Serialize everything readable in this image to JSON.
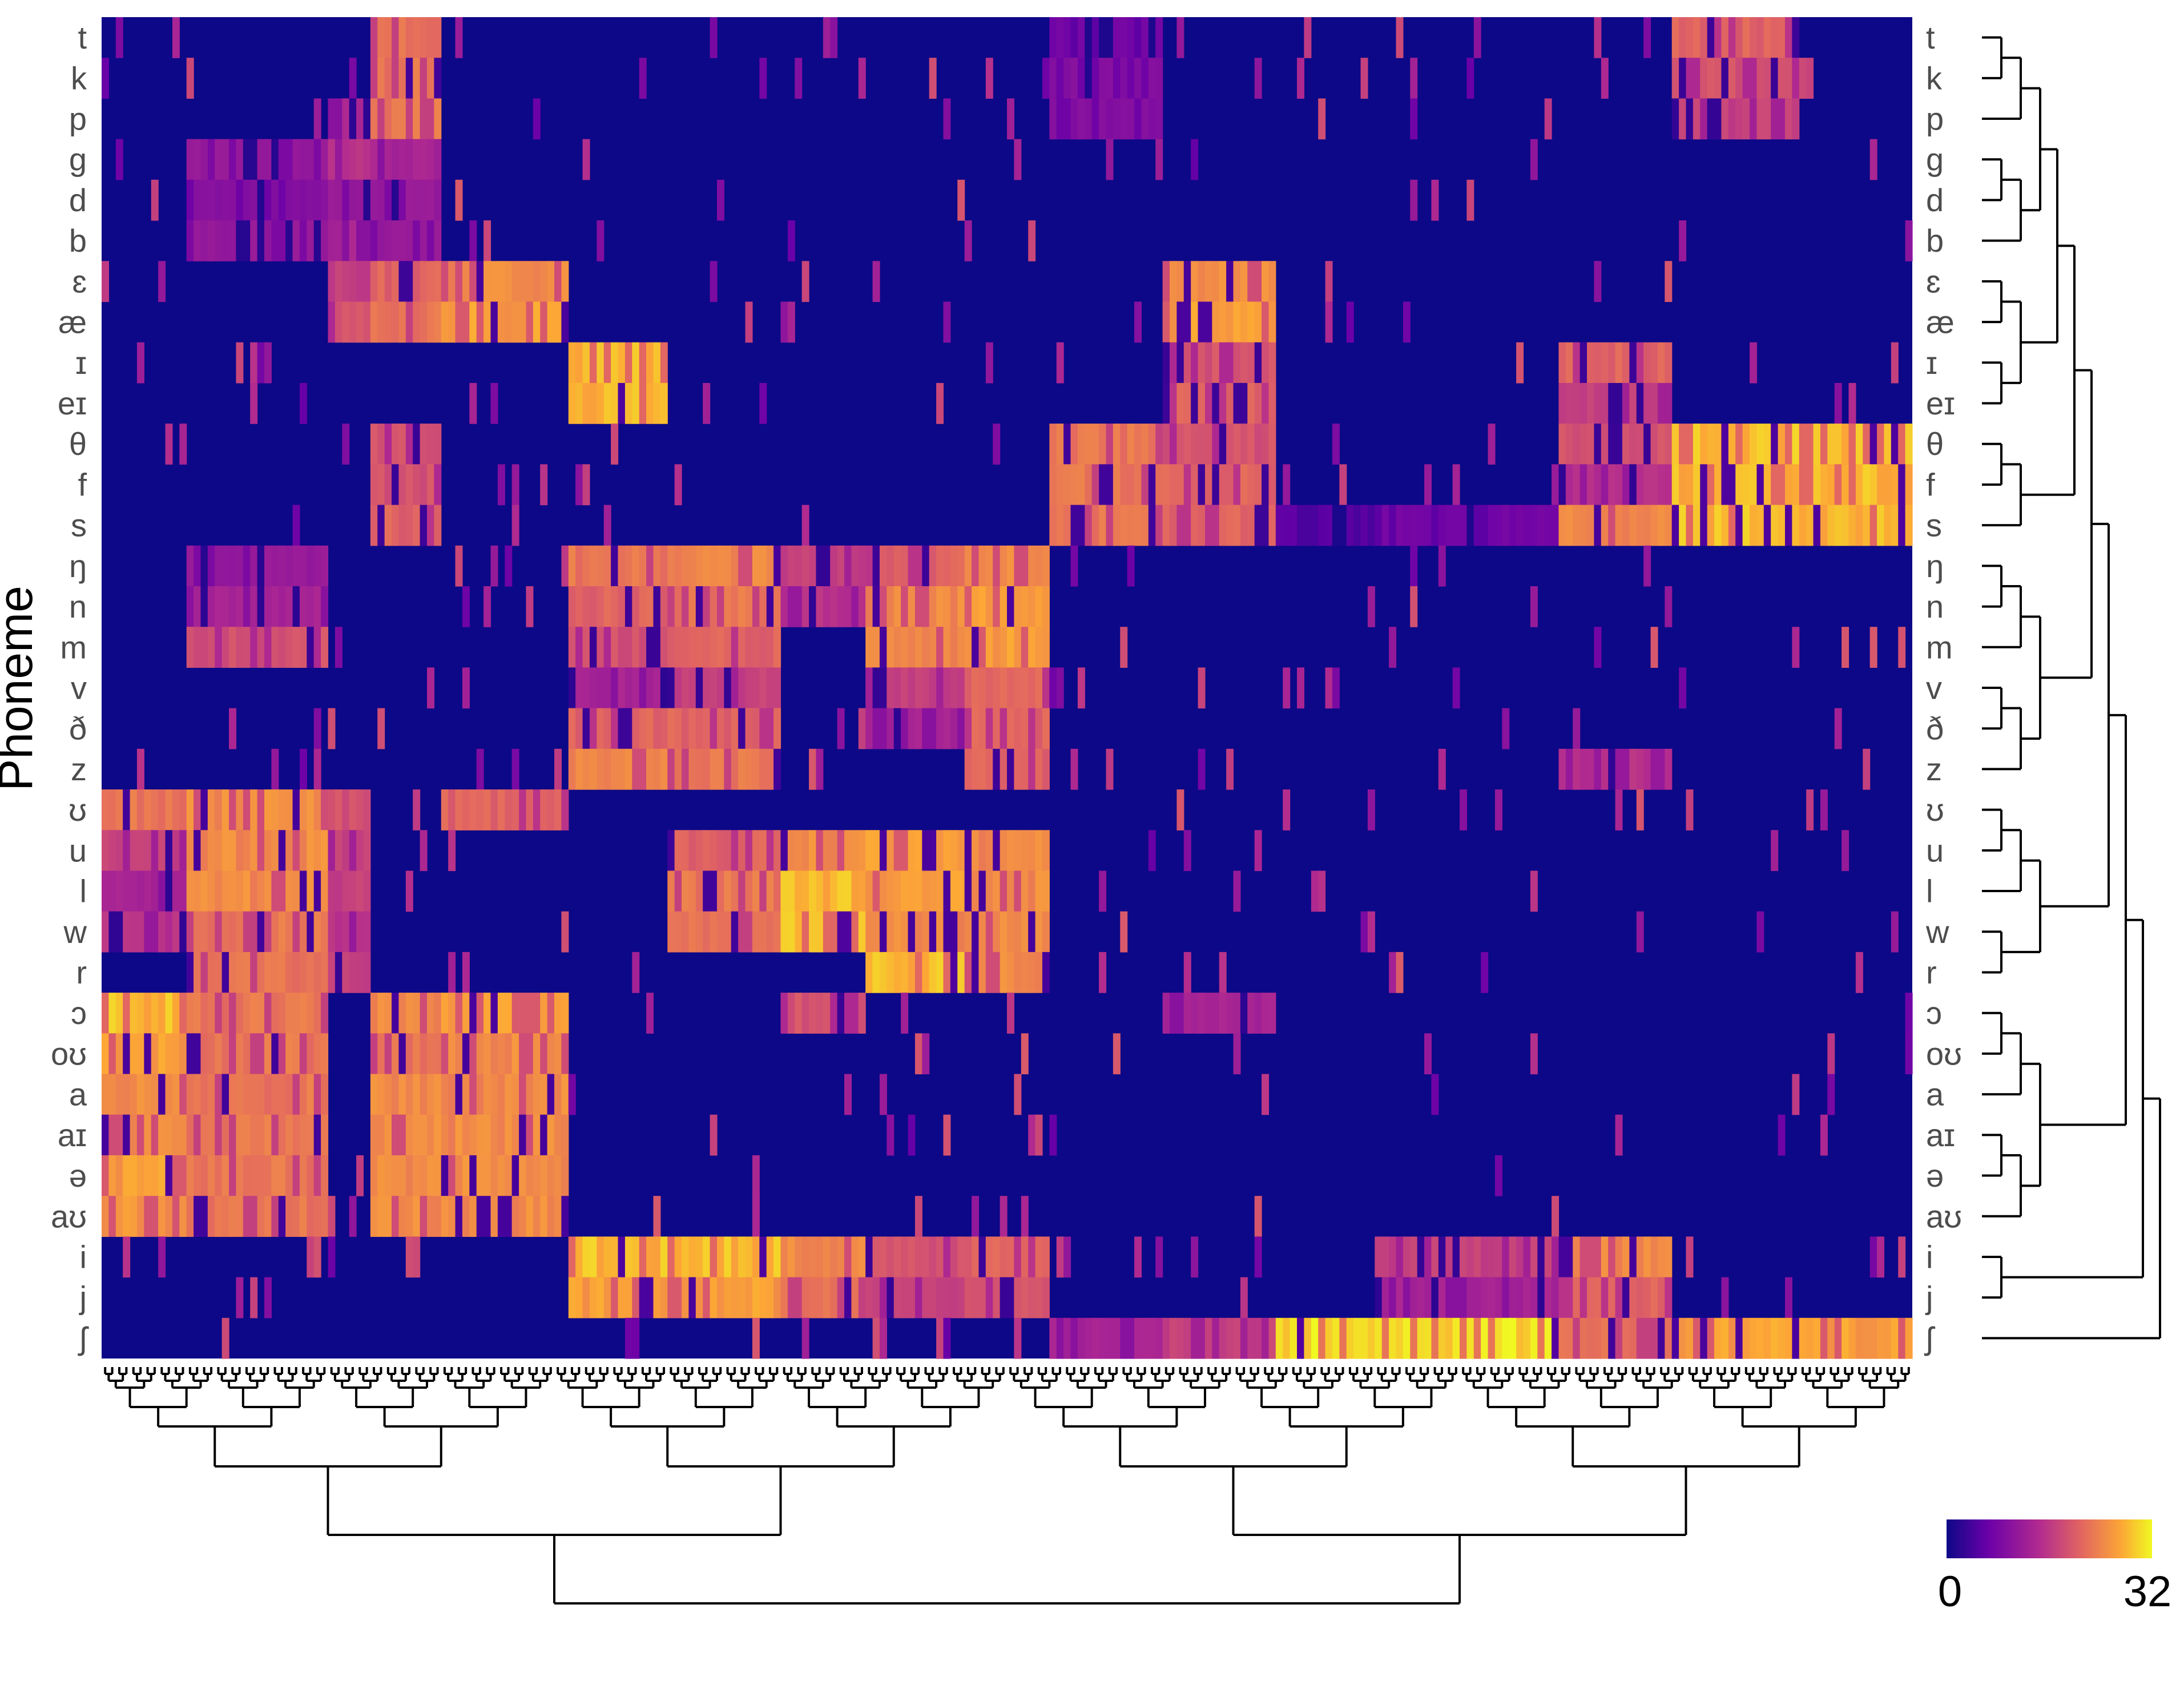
{
  "chart_data": {
    "type": "heatmap",
    "ylabel": "Phoneme",
    "rows": [
      "t",
      "k",
      "p",
      "g",
      "d",
      "b",
      "ɛ",
      "æ",
      "ɪ",
      "eɪ",
      "θ",
      "f",
      "s",
      "ŋ",
      "n",
      "m",
      "v",
      "ð",
      "z",
      "ʊ",
      "u",
      "l",
      "w",
      "r",
      "ɔ",
      "oʊ",
      "a",
      "aɪ",
      "ə",
      "aʊ",
      "i",
      "j",
      "ʃ"
    ],
    "n_columns": 256,
    "value_range": [
      0,
      32
    ],
    "colorbar": {
      "min_label": "0",
      "max_label": "32"
    },
    "colorscale": [
      "#0d0887",
      "#6a00a8",
      "#b12a90",
      "#e16462",
      "#fca636",
      "#f0f921"
    ],
    "column_blocks": [
      {
        "cols": [
          0,
          12
        ],
        "rows": {
          "ʊ": 24,
          "u": 18,
          "l": 14,
          "w": 16,
          "ɔ": 30,
          "oʊ": 28,
          "a": 26,
          "aɪ": 26,
          "ə": 28,
          "aʊ": 27
        }
      },
      {
        "cols": [
          12,
          32
        ],
        "rows": {
          "ʊ": 26,
          "u": 26,
          "l": 26,
          "w": 24,
          "r": 24,
          "ɔ": 24,
          "oʊ": 24,
          "a": 24,
          "aɪ": 24,
          "ə": 24,
          "aʊ": 24,
          "m": 20,
          "n": 14,
          "ŋ": 12,
          "g": 12,
          "d": 10,
          "b": 12
        }
      },
      {
        "cols": [
          32,
          38
        ],
        "rows": {
          "p": 14,
          "g": 16,
          "d": 12,
          "b": 14,
          "ɛ": 18,
          "æ": 20,
          "ʊ": 20,
          "u": 18,
          "l": 18,
          "w": 16,
          "r": 18
        }
      },
      {
        "cols": [
          38,
          48
        ],
        "rows": {
          "t": 24,
          "k": 24,
          "p": 24,
          "g": 14,
          "d": 12,
          "b": 12,
          "ɛ": 22,
          "æ": 24,
          "θ": 20,
          "f": 20,
          "s": 22,
          "ɔ": 26,
          "oʊ": 24,
          "a": 26,
          "aɪ": 26,
          "ə": 26,
          "aʊ": 26
        }
      },
      {
        "cols": [
          48,
          66
        ],
        "rows": {
          "ɛ": 26,
          "æ": 28,
          "ʊ": 22,
          "ɔ": 28,
          "oʊ": 26,
          "a": 26,
          "aɪ": 26,
          "ə": 26,
          "aʊ": 26
        }
      },
      {
        "cols": [
          66,
          80
        ],
        "rows": {
          "ɪ": 30,
          "eɪ": 30,
          "ŋ": 24,
          "n": 22,
          "m": 20,
          "v": 14,
          "ð": 22,
          "z": 26,
          "i": 30,
          "j": 28
        }
      },
      {
        "cols": [
          80,
          96
        ],
        "rows": {
          "ŋ": 26,
          "n": 24,
          "m": 22,
          "v": 18,
          "ð": 22,
          "z": 24,
          "u": 22,
          "l": 24,
          "w": 24,
          "i": 30,
          "j": 28
        }
      },
      {
        "cols": [
          96,
          108
        ],
        "rows": {
          "u": 26,
          "l": 30,
          "w": 30,
          "ŋ": 18,
          "n": 16,
          "i": 26,
          "j": 24,
          "ɔ": 20
        }
      },
      {
        "cols": [
          108,
          122
        ],
        "rows": {
          "ŋ": 22,
          "n": 26,
          "m": 26,
          "v": 18,
          "ð": 14,
          "u": 28,
          "l": 28,
          "w": 26,
          "r": 30,
          "i": 20,
          "j": 18
        }
      },
      {
        "cols": [
          122,
          134
        ],
        "rows": {
          "ŋ": 26,
          "n": 28,
          "m": 28,
          "v": 22,
          "ð": 22,
          "z": 22,
          "u": 26,
          "l": 26,
          "w": 26,
          "r": 26,
          "i": 22,
          "j": 20
        }
      },
      {
        "cols": [
          134,
          150
        ],
        "rows": {
          "t": 8,
          "k": 10,
          "p": 10,
          "θ": 24,
          "f": 24,
          "s": 24,
          "ʃ": 14
        }
      },
      {
        "cols": [
          150,
          166
        ],
        "rows": {
          "ɛ": 26,
          "æ": 28,
          "ɪ": 20,
          "eɪ": 22,
          "θ": 20,
          "f": 22,
          "s": 22,
          "ɔ": 14,
          "ʃ": 18
        }
      },
      {
        "cols": [
          166,
          180
        ],
        "rows": {
          "ʃ": 32,
          "s": 6
        }
      },
      {
        "cols": [
          180,
          206
        ],
        "rows": {
          "ʃ": 32,
          "s": 8,
          "i": 18,
          "j": 14
        }
      },
      {
        "cols": [
          206,
          222
        ],
        "rows": {
          "ɪ": 22,
          "eɪ": 18,
          "i": 26,
          "j": 22,
          "θ": 20,
          "f": 16,
          "s": 26,
          "ʃ": 24,
          "z": 16
        }
      },
      {
        "cols": [
          222,
          240
        ],
        "rows": {
          "θ": 30,
          "f": 30,
          "s": 30,
          "ʃ": 28,
          "t": 22,
          "k": 20,
          "p": 18
        }
      },
      {
        "cols": [
          240,
          256
        ],
        "rows": {
          "θ": 30,
          "f": 30,
          "s": 30,
          "ʃ": 28
        }
      }
    ]
  }
}
